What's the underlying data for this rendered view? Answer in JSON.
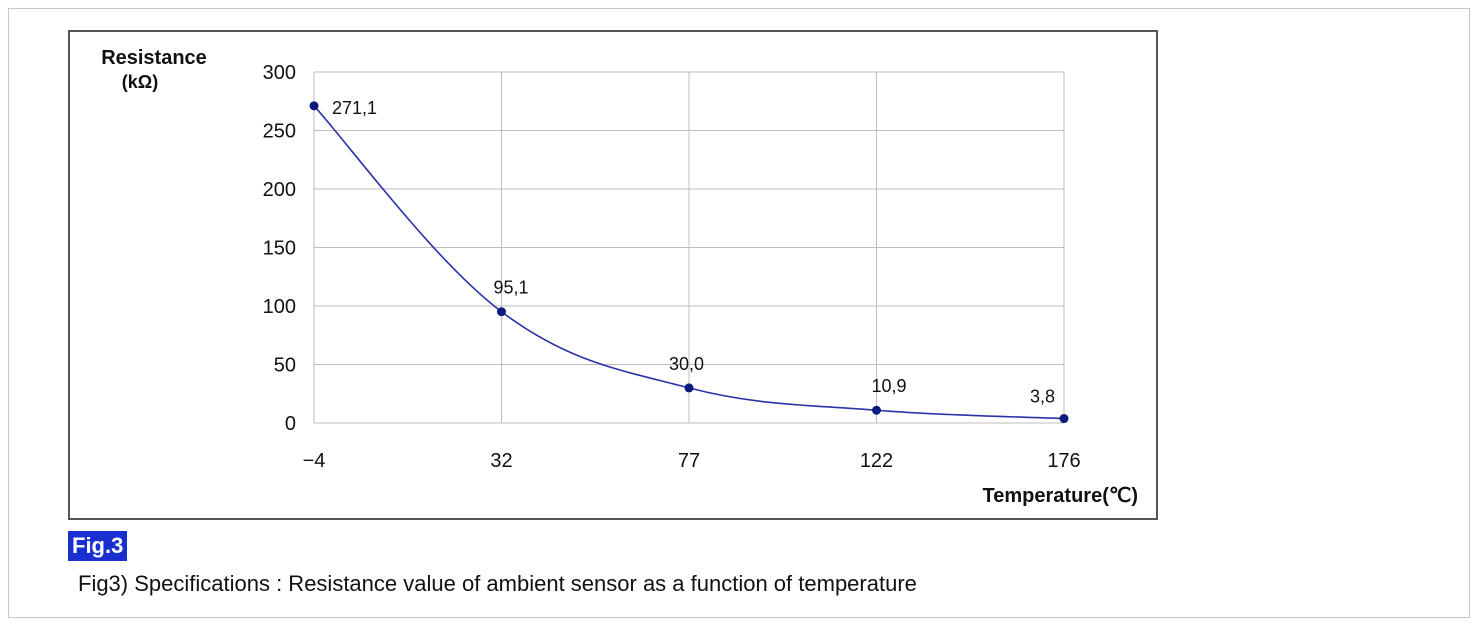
{
  "figure": {
    "badge": "Fig.3",
    "caption": "Fig3) Specifications : Resistance value of ambient sensor as a function of temperature"
  },
  "colors": {
    "line": "#2b33a6",
    "marker": "#0d1a80",
    "grid": "#bdbdbd",
    "badge_bg": "#1a2fd0"
  },
  "chart_data": {
    "type": "line",
    "title": "",
    "ylabel_line1": "Resistance",
    "ylabel_line2": "(kΩ)",
    "xlabel": "Temperature(℃)",
    "x_is_categorical": true,
    "categories": [
      "−4",
      "32",
      "77",
      "122",
      "176"
    ],
    "ylim": [
      0,
      300
    ],
    "yticks": [
      0,
      50,
      100,
      150,
      200,
      250,
      300
    ],
    "grid": true,
    "series": [
      {
        "values": [
          271.1,
          95.1,
          30.0,
          10.9,
          3.8
        ],
        "labels": [
          "271,1",
          "95,1",
          "30,0",
          "10,9",
          "3,8"
        ]
      }
    ]
  }
}
